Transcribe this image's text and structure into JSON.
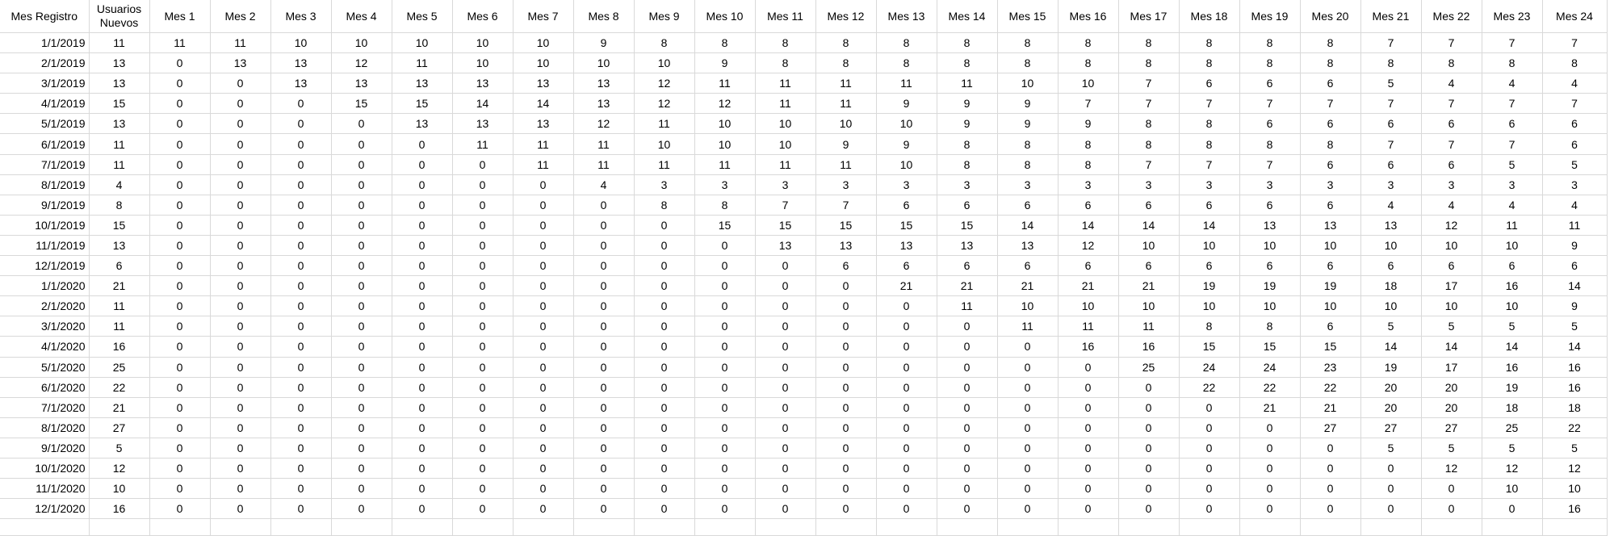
{
  "sheet": {
    "headers": [
      "Mes Registro",
      "Usuarios Nuevos",
      "Mes 1",
      "Mes 2",
      "Mes 3",
      "Mes 4",
      "Mes 5",
      "Mes 6",
      "Mes 7",
      "Mes 8",
      "Mes 9",
      "Mes 10",
      "Mes 11",
      "Mes 12",
      "Mes 13",
      "Mes 14",
      "Mes 15",
      "Mes 16",
      "Mes 17",
      "Mes 18",
      "Mes 19",
      "Mes 20",
      "Mes 21",
      "Mes 22",
      "Mes 23",
      "Mes 24"
    ],
    "rows": [
      [
        "1/1/2019",
        "11",
        "11",
        "11",
        "10",
        "10",
        "10",
        "10",
        "10",
        "9",
        "8",
        "8",
        "8",
        "8",
        "8",
        "8",
        "8",
        "8",
        "8",
        "8",
        "8",
        "8",
        "7",
        "7",
        "7",
        "7"
      ],
      [
        "2/1/2019",
        "13",
        "0",
        "13",
        "13",
        "12",
        "11",
        "10",
        "10",
        "10",
        "10",
        "9",
        "8",
        "8",
        "8",
        "8",
        "8",
        "8",
        "8",
        "8",
        "8",
        "8",
        "8",
        "8",
        "8",
        "8"
      ],
      [
        "3/1/2019",
        "13",
        "0",
        "0",
        "13",
        "13",
        "13",
        "13",
        "13",
        "13",
        "12",
        "11",
        "11",
        "11",
        "11",
        "11",
        "10",
        "10",
        "7",
        "6",
        "6",
        "6",
        "5",
        "4",
        "4",
        "4"
      ],
      [
        "4/1/2019",
        "15",
        "0",
        "0",
        "0",
        "15",
        "15",
        "14",
        "14",
        "13",
        "12",
        "12",
        "11",
        "11",
        "9",
        "9",
        "9",
        "7",
        "7",
        "7",
        "7",
        "7",
        "7",
        "7",
        "7",
        "7"
      ],
      [
        "5/1/2019",
        "13",
        "0",
        "0",
        "0",
        "0",
        "13",
        "13",
        "13",
        "12",
        "11",
        "10",
        "10",
        "10",
        "10",
        "9",
        "9",
        "9",
        "8",
        "8",
        "6",
        "6",
        "6",
        "6",
        "6",
        "6"
      ],
      [
        "6/1/2019",
        "11",
        "0",
        "0",
        "0",
        "0",
        "0",
        "11",
        "11",
        "11",
        "10",
        "10",
        "10",
        "9",
        "9",
        "8",
        "8",
        "8",
        "8",
        "8",
        "8",
        "8",
        "7",
        "7",
        "7",
        "6"
      ],
      [
        "7/1/2019",
        "11",
        "0",
        "0",
        "0",
        "0",
        "0",
        "0",
        "11",
        "11",
        "11",
        "11",
        "11",
        "11",
        "10",
        "8",
        "8",
        "8",
        "7",
        "7",
        "7",
        "6",
        "6",
        "6",
        "5",
        "5"
      ],
      [
        "8/1/2019",
        "4",
        "0",
        "0",
        "0",
        "0",
        "0",
        "0",
        "0",
        "4",
        "3",
        "3",
        "3",
        "3",
        "3",
        "3",
        "3",
        "3",
        "3",
        "3",
        "3",
        "3",
        "3",
        "3",
        "3",
        "3"
      ],
      [
        "9/1/2019",
        "8",
        "0",
        "0",
        "0",
        "0",
        "0",
        "0",
        "0",
        "0",
        "8",
        "8",
        "7",
        "7",
        "6",
        "6",
        "6",
        "6",
        "6",
        "6",
        "6",
        "6",
        "4",
        "4",
        "4",
        "4"
      ],
      [
        "10/1/2019",
        "15",
        "0",
        "0",
        "0",
        "0",
        "0",
        "0",
        "0",
        "0",
        "0",
        "15",
        "15",
        "15",
        "15",
        "15",
        "14",
        "14",
        "14",
        "14",
        "13",
        "13",
        "13",
        "12",
        "11",
        "11"
      ],
      [
        "11/1/2019",
        "13",
        "0",
        "0",
        "0",
        "0",
        "0",
        "0",
        "0",
        "0",
        "0",
        "0",
        "13",
        "13",
        "13",
        "13",
        "13",
        "12",
        "10",
        "10",
        "10",
        "10",
        "10",
        "10",
        "10",
        "9"
      ],
      [
        "12/1/2019",
        "6",
        "0",
        "0",
        "0",
        "0",
        "0",
        "0",
        "0",
        "0",
        "0",
        "0",
        "0",
        "6",
        "6",
        "6",
        "6",
        "6",
        "6",
        "6",
        "6",
        "6",
        "6",
        "6",
        "6",
        "6"
      ],
      [
        "1/1/2020",
        "21",
        "0",
        "0",
        "0",
        "0",
        "0",
        "0",
        "0",
        "0",
        "0",
        "0",
        "0",
        "0",
        "21",
        "21",
        "21",
        "21",
        "21",
        "19",
        "19",
        "19",
        "18",
        "17",
        "16",
        "14"
      ],
      [
        "2/1/2020",
        "11",
        "0",
        "0",
        "0",
        "0",
        "0",
        "0",
        "0",
        "0",
        "0",
        "0",
        "0",
        "0",
        "0",
        "11",
        "10",
        "10",
        "10",
        "10",
        "10",
        "10",
        "10",
        "10",
        "10",
        "9"
      ],
      [
        "3/1/2020",
        "11",
        "0",
        "0",
        "0",
        "0",
        "0",
        "0",
        "0",
        "0",
        "0",
        "0",
        "0",
        "0",
        "0",
        "0",
        "11",
        "11",
        "11",
        "8",
        "8",
        "6",
        "5",
        "5",
        "5",
        "5"
      ],
      [
        "4/1/2020",
        "16",
        "0",
        "0",
        "0",
        "0",
        "0",
        "0",
        "0",
        "0",
        "0",
        "0",
        "0",
        "0",
        "0",
        "0",
        "0",
        "16",
        "16",
        "15",
        "15",
        "15",
        "14",
        "14",
        "14",
        "14"
      ],
      [
        "5/1/2020",
        "25",
        "0",
        "0",
        "0",
        "0",
        "0",
        "0",
        "0",
        "0",
        "0",
        "0",
        "0",
        "0",
        "0",
        "0",
        "0",
        "0",
        "25",
        "24",
        "24",
        "23",
        "19",
        "17",
        "16",
        "16"
      ],
      [
        "6/1/2020",
        "22",
        "0",
        "0",
        "0",
        "0",
        "0",
        "0",
        "0",
        "0",
        "0",
        "0",
        "0",
        "0",
        "0",
        "0",
        "0",
        "0",
        "0",
        "22",
        "22",
        "22",
        "20",
        "20",
        "19",
        "16"
      ],
      [
        "7/1/2020",
        "21",
        "0",
        "0",
        "0",
        "0",
        "0",
        "0",
        "0",
        "0",
        "0",
        "0",
        "0",
        "0",
        "0",
        "0",
        "0",
        "0",
        "0",
        "0",
        "21",
        "21",
        "20",
        "20",
        "18",
        "18"
      ],
      [
        "8/1/2020",
        "27",
        "0",
        "0",
        "0",
        "0",
        "0",
        "0",
        "0",
        "0",
        "0",
        "0",
        "0",
        "0",
        "0",
        "0",
        "0",
        "0",
        "0",
        "0",
        "0",
        "27",
        "27",
        "27",
        "25",
        "22"
      ],
      [
        "9/1/2020",
        "5",
        "0",
        "0",
        "0",
        "0",
        "0",
        "0",
        "0",
        "0",
        "0",
        "0",
        "0",
        "0",
        "0",
        "0",
        "0",
        "0",
        "0",
        "0",
        "0",
        "0",
        "5",
        "5",
        "5",
        "5"
      ],
      [
        "10/1/2020",
        "12",
        "0",
        "0",
        "0",
        "0",
        "0",
        "0",
        "0",
        "0",
        "0",
        "0",
        "0",
        "0",
        "0",
        "0",
        "0",
        "0",
        "0",
        "0",
        "0",
        "0",
        "0",
        "12",
        "12",
        "12"
      ],
      [
        "11/1/2020",
        "10",
        "0",
        "0",
        "0",
        "0",
        "0",
        "0",
        "0",
        "0",
        "0",
        "0",
        "0",
        "0",
        "0",
        "0",
        "0",
        "0",
        "0",
        "0",
        "0",
        "0",
        "0",
        "0",
        "10",
        "10"
      ],
      [
        "12/1/2020",
        "16",
        "0",
        "0",
        "0",
        "0",
        "0",
        "0",
        "0",
        "0",
        "0",
        "0",
        "0",
        "0",
        "0",
        "0",
        "0",
        "0",
        "0",
        "0",
        "0",
        "0",
        "0",
        "0",
        "0",
        "16"
      ]
    ]
  },
  "colors": {
    "gridline": "#d9d9d9",
    "text": "#000000",
    "background": "#ffffff"
  }
}
